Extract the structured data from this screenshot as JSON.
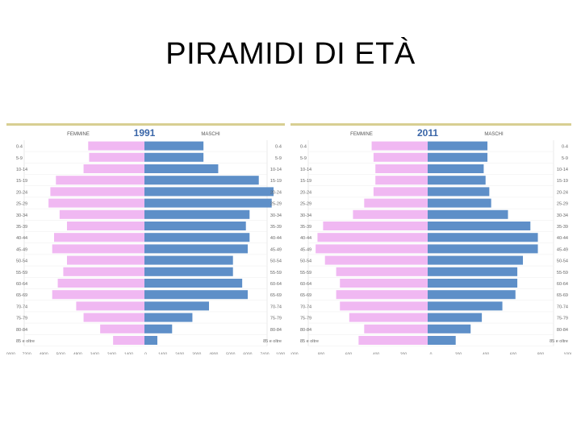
{
  "slide": {
    "title": "PIRAMIDI DI ETÀ"
  },
  "colors": {
    "female": "#f0b8f2",
    "male": "#5e8fc8",
    "year": "#3a66a8",
    "border": "#d8cf92"
  },
  "chart_data": [
    {
      "type": "bar",
      "title": "1991",
      "categories_left": [
        "0-4",
        "5-9",
        "10-14",
        "15-19",
        "20-24",
        "25-29",
        "30-34",
        "35-39",
        "40-44",
        "45-49",
        "50-54",
        "55-59",
        "60-64",
        "65-69",
        "70-74",
        "75-79",
        "80-84",
        "85 e oltre"
      ],
      "categories_right": [
        "0-4",
        "5-9",
        "10-14",
        "15-19",
        "20-24",
        "25-29",
        "30-34",
        "35-39",
        "40-44",
        "45-49",
        "50-54",
        "55-59",
        "60-64",
        "65-69",
        "70-74",
        "75-79",
        "80-84",
        "85 e oltre"
      ],
      "series": [
        {
          "name": "FEMMINE",
          "values": [
            305000,
            300000,
            330000,
            480000,
            510000,
            520000,
            460000,
            420000,
            490000,
            500000,
            420000,
            440000,
            470000,
            500000,
            370000,
            330000,
            240000,
            170000
          ]
        },
        {
          "name": "MASCHI",
          "values": [
            320000,
            320000,
            400000,
            620000,
            700000,
            690000,
            570000,
            550000,
            570000,
            560000,
            480000,
            480000,
            530000,
            560000,
            350000,
            260000,
            150000,
            70000
          ]
        }
      ],
      "x_ticks": [
        "10000",
        "7200",
        "4800",
        "5000",
        "4800",
        "3400",
        "2400",
        "1400",
        "0",
        "1400",
        "2400",
        "3000",
        "4800",
        "5000",
        "6000",
        "7400",
        "10000"
      ],
      "xlim": [
        -700000,
        700000
      ]
    },
    {
      "type": "bar",
      "title": "2011",
      "categories_left": [
        "0-4",
        "5-9",
        "10-14",
        "15-19",
        "20-24",
        "25-29",
        "30-34",
        "35-39",
        "40-44",
        "45-49",
        "50-54",
        "55-59",
        "60-64",
        "65-69",
        "70-74",
        "75-79",
        "80-84",
        "85 e oltre"
      ],
      "categories_right": [
        "0-4",
        "5-9",
        "10-14",
        "15-19",
        "20-24",
        "25-29",
        "30-34",
        "35-39",
        "40-44",
        "45-49",
        "50-54",
        "55-59",
        "60-64",
        "65-69",
        "70-74",
        "75-79",
        "80-84",
        "85 e oltre"
      ],
      "series": [
        {
          "name": "FEMMINE",
          "values": [
            300000,
            290000,
            280000,
            280000,
            290000,
            340000,
            400000,
            560000,
            590000,
            600000,
            550000,
            490000,
            470000,
            490000,
            470000,
            420000,
            340000,
            370000
          ]
        },
        {
          "name": "MASCHI",
          "values": [
            320000,
            320000,
            300000,
            310000,
            330000,
            340000,
            430000,
            550000,
            590000,
            590000,
            510000,
            480000,
            480000,
            470000,
            400000,
            290000,
            230000,
            150000
          ]
        }
      ],
      "x_ticks": [
        "1000",
        "800",
        "600",
        "400",
        "200",
        "0",
        "200",
        "400",
        "600",
        "800",
        "1000"
      ],
      "xlim": [
        -700000,
        700000
      ]
    }
  ]
}
